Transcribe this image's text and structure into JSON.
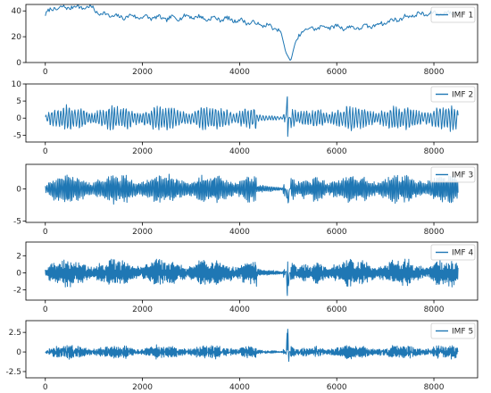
{
  "chart_data": [
    {
      "type": "line",
      "x_range": [
        0,
        8500
      ],
      "xlim": [
        -400,
        8900
      ],
      "ylim": [
        0,
        45
      ],
      "x_ticks": [
        0,
        2000,
        4000,
        6000,
        8000
      ],
      "y_ticks": [
        0,
        20,
        40
      ],
      "legend": "upper right",
      "series": [
        {
          "name": "IMF 1",
          "color": "#1f77b4",
          "signal": "trend",
          "anchors_x": [
            0,
            150,
            300,
            500,
            800,
            1000,
            1100,
            1300,
            1500,
            1800,
            2000,
            2200,
            2500,
            2800,
            3000,
            3300,
            3600,
            3900,
            4200,
            4500,
            4700,
            4850,
            4950,
            5050,
            5150,
            5300,
            5600,
            5900,
            6200,
            6500,
            6800,
            7200,
            7600,
            8000,
            8300,
            8500
          ],
          "anchors_y": [
            37,
            42,
            42,
            43,
            43,
            42,
            38,
            37,
            35,
            36,
            35,
            35,
            34,
            35,
            36,
            34,
            34,
            33,
            31,
            29,
            27,
            24,
            8,
            1,
            16,
            25,
            27,
            28,
            27,
            27,
            29,
            33,
            37,
            38,
            38,
            40
          ]
        }
      ]
    },
    {
      "type": "line",
      "x_range": [
        0,
        8500
      ],
      "xlim": [
        -400,
        8900
      ],
      "ylim": [
        -7,
        10
      ],
      "x_ticks": [
        0,
        2000,
        4000,
        6000,
        8000
      ],
      "y_ticks": [
        -5,
        0,
        5,
        10
      ],
      "legend": "upper right",
      "series": [
        {
          "name": "IMF 2",
          "color": "#1f77b4",
          "signal": "oscillation",
          "peak": 4.2,
          "spike": 9.2,
          "period": 60,
          "seed": 11
        }
      ]
    },
    {
      "type": "line",
      "x_range": [
        0,
        8500
      ],
      "xlim": [
        -400,
        8900
      ],
      "ylim": [
        -5.2,
        3.8
      ],
      "x_ticks": [
        0,
        2000,
        4000,
        6000,
        8000
      ],
      "y_ticks": [
        -5,
        0
      ],
      "legend": "upper right",
      "series": [
        {
          "name": "IMF 3",
          "color": "#1f77b4",
          "signal": "oscillation",
          "peak": 2.6,
          "spike": 3.5,
          "period": 30,
          "seed": 23
        }
      ]
    },
    {
      "type": "line",
      "x_range": [
        0,
        8500
      ],
      "xlim": [
        -400,
        8900
      ],
      "ylim": [
        -3.2,
        3.6
      ],
      "x_ticks": [
        0,
        2000,
        4000,
        6000,
        8000
      ],
      "y_ticks": [
        -2,
        0,
        2
      ],
      "legend": "upper right",
      "series": [
        {
          "name": "IMF 4",
          "color": "#1f77b4",
          "signal": "oscillation",
          "peak": 1.8,
          "spike": 3.3,
          "period": 20,
          "seed": 37
        }
      ]
    },
    {
      "type": "line",
      "x_range": [
        0,
        8500
      ],
      "xlim": [
        -400,
        8900
      ],
      "ylim": [
        -3.3,
        4.0
      ],
      "x_ticks": [
        0,
        2000,
        4000,
        6000,
        8000
      ],
      "y_ticks": [
        -2.5,
        0.0,
        2.5
      ],
      "legend": "upper right",
      "series": [
        {
          "name": "IMF 5",
          "color": "#1f77b4",
          "signal": "oscillation",
          "peak": 1.0,
          "spike": 3.7,
          "period": 12,
          "seed": 53
        }
      ]
    }
  ]
}
